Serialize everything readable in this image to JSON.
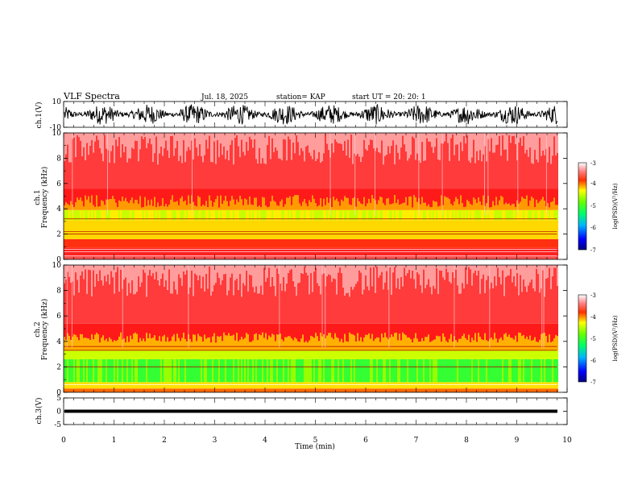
{
  "header": {
    "title": "VLF Spectra",
    "date": "Jul. 18, 2025",
    "station": "station= KAP",
    "start": "start  UT  =   20: 20: 1"
  },
  "chart_data": [
    {
      "type": "line",
      "name": "ch.1 waveform",
      "ylabel": "ch.1(V)",
      "ylim": [
        -10,
        10
      ],
      "yticks": [
        "10",
        "-10"
      ],
      "xlim": [
        0,
        10
      ]
    },
    {
      "type": "heatmap",
      "name": "ch.1 spectrogram",
      "ylabel_top": "ch.1",
      "ylabel": "Frequency  (kHz)",
      "ylim": [
        0,
        10
      ],
      "yticks": [
        "0",
        "2",
        "4",
        "6",
        "8",
        "10"
      ],
      "xlim": [
        0,
        9.8
      ],
      "colorbar": {
        "label": "log(PSD)(V²/Hz)",
        "range": [
          -7,
          -3
        ],
        "ticks": [
          "-3",
          "-4",
          "-5",
          "-6",
          "-7"
        ]
      }
    },
    {
      "type": "heatmap",
      "name": "ch.2 spectrogram",
      "ylabel_top": "ch.2",
      "ylabel": "Frequency  (kHz)",
      "ylim": [
        0,
        10
      ],
      "yticks": [
        "0",
        "2",
        "4",
        "6",
        "8",
        "10"
      ],
      "xlim": [
        0,
        9.8
      ],
      "colorbar": {
        "label": "log(PSD)(V²/Hz)",
        "range": [
          -7,
          -3
        ],
        "ticks": [
          "-3",
          "-4",
          "-5",
          "-6",
          "-7"
        ]
      }
    },
    {
      "type": "line",
      "name": "ch.3 waveform",
      "ylabel": "ch.3(V)",
      "ylim": [
        -5,
        5
      ],
      "yticks": [
        "5",
        "0",
        "-5"
      ],
      "xlim": [
        0,
        10
      ]
    }
  ],
  "xaxis": {
    "label": "Time  (min)",
    "range": [
      0,
      10
    ],
    "ticks": [
      "0",
      "1",
      "2",
      "3",
      "4",
      "5",
      "6",
      "7",
      "8",
      "9",
      "10"
    ]
  }
}
